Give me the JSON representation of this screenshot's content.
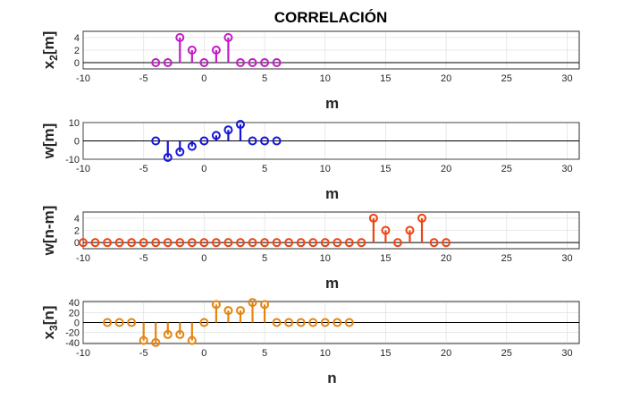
{
  "title": "CORRELACIÓN",
  "chart_data": [
    {
      "type": "stem",
      "ylabel": "x_2[m]",
      "xlabel": "m",
      "xlim": [
        -10,
        31
      ],
      "ylim": [
        -1,
        5
      ],
      "xticks": [
        -10,
        -5,
        0,
        5,
        10,
        15,
        20,
        25,
        30
      ],
      "yticks": [
        0,
        2,
        4
      ],
      "color": "#c31cc6",
      "x": [
        -4,
        -3,
        -2,
        -1,
        0,
        1,
        2,
        3,
        4,
        5,
        6
      ],
      "y": [
        0,
        0,
        4,
        2,
        0,
        2,
        4,
        0,
        0,
        0,
        0
      ]
    },
    {
      "type": "stem",
      "ylabel": "w[m]",
      "xlabel": "m",
      "xlim": [
        -10,
        31
      ],
      "ylim": [
        -10,
        10
      ],
      "xticks": [
        -10,
        -5,
        0,
        5,
        10,
        15,
        20,
        25,
        30
      ],
      "yticks": [
        -10,
        0,
        10
      ],
      "color": "#1515d8",
      "x": [
        -4,
        -3,
        -2,
        -1,
        0,
        1,
        2,
        3,
        4,
        5,
        6
      ],
      "y": [
        0,
        -9,
        -6,
        -3,
        0,
        3,
        6,
        9,
        0,
        0,
        0
      ]
    },
    {
      "type": "stem",
      "ylabel": "w[n-m]",
      "xlabel": "m",
      "xlim": [
        -10,
        31
      ],
      "ylim": [
        -1,
        5
      ],
      "xticks": [
        -10,
        -5,
        0,
        5,
        10,
        15,
        20,
        25,
        30
      ],
      "yticks": [
        0,
        2,
        4
      ],
      "color": "#ee4411",
      "x": [
        -10,
        -9,
        -8,
        -7,
        -6,
        -5,
        -4,
        -3,
        -2,
        -1,
        0,
        1,
        2,
        3,
        4,
        5,
        6,
        7,
        8,
        9,
        10,
        11,
        12,
        13,
        14,
        15,
        16,
        17,
        18,
        19,
        20
      ],
      "y": [
        0,
        0,
        0,
        0,
        0,
        0,
        0,
        0,
        0,
        0,
        0,
        0,
        0,
        0,
        0,
        0,
        0,
        0,
        0,
        0,
        0,
        0,
        0,
        0,
        4,
        2,
        0,
        2,
        4,
        0,
        0
      ]
    },
    {
      "type": "stem",
      "ylabel": "x_3[n]",
      "xlabel": "n",
      "xlim": [
        -10,
        31
      ],
      "ylim": [
        -42,
        42
      ],
      "xticks": [
        -10,
        -5,
        0,
        5,
        10,
        15,
        20,
        25,
        30
      ],
      "yticks": [
        -40,
        -20,
        0,
        20,
        40
      ],
      "color": "#e6840e",
      "x": [
        -8,
        -7,
        -6,
        -5,
        -4,
        -3,
        -2,
        -1,
        0,
        1,
        2,
        3,
        4,
        5,
        6,
        7,
        8,
        9,
        10,
        11,
        12
      ],
      "y": [
        0,
        0,
        0,
        -36,
        -40,
        -24,
        -24,
        -36,
        0,
        36,
        24,
        24,
        40,
        36,
        0,
        0,
        0,
        0,
        0,
        0,
        0
      ]
    }
  ]
}
